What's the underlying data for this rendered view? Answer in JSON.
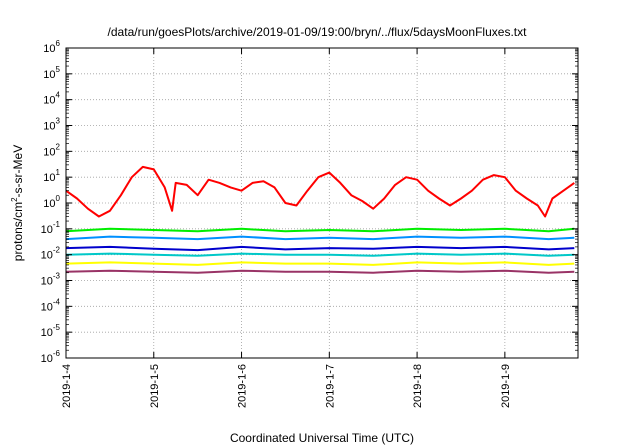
{
  "chart_data": {
    "type": "line",
    "title": "/data/run/goesPlots/archive/2019-01-09/19:00/bryn/../flux/5daysMoonFluxes.txt",
    "xlabel": "Coordinated Universal Time (UTC)",
    "ylabel": "protons/cm²-s-sr-MeV",
    "ylabel_parts": {
      "base": "protons/cm",
      "sup": "2",
      "rest": "-s-sr-MeV"
    },
    "yscale": "log",
    "xlim": [
      "2019-01-04T00:00",
      "2019-01-09T20:00"
    ],
    "ylim": [
      1e-06,
      1000000.0
    ],
    "grid": true,
    "x_tick_labels": [
      "2019-1-4",
      "2019-1-5",
      "2019-1-6",
      "2019-1-7",
      "2019-1-8",
      "2019-1-9"
    ],
    "y_ticks": [
      {
        "base": "10",
        "exp": "-6"
      },
      {
        "base": "10",
        "exp": "-5"
      },
      {
        "base": "10",
        "exp": "-4"
      },
      {
        "base": "10",
        "exp": "-3"
      },
      {
        "base": "10",
        "exp": "-2"
      },
      {
        "base": "10",
        "exp": "-1"
      },
      {
        "base": "10",
        "exp": "0"
      },
      {
        "base": "10",
        "exp": "1"
      },
      {
        "base": "10",
        "exp": "2"
      },
      {
        "base": "10",
        "exp": "3"
      },
      {
        "base": "10",
        "exp": "4"
      },
      {
        "base": "10",
        "exp": "5"
      },
      {
        "base": "10",
        "exp": "6"
      }
    ],
    "series": [
      {
        "color": "#ff0000",
        "x": [
          "2019-01-04T00:00",
          "2019-01-04T03:00",
          "2019-01-04T06:00",
          "2019-01-04T09:00",
          "2019-01-04T12:00",
          "2019-01-04T15:00",
          "2019-01-04T18:00",
          "2019-01-04T21:00",
          "2019-01-05T00:00",
          "2019-01-05T03:00",
          "2019-01-05T05:00",
          "2019-01-05T06:00",
          "2019-01-05T09:00",
          "2019-01-05T12:00",
          "2019-01-05T15:00",
          "2019-01-05T18:00",
          "2019-01-05T21:00",
          "2019-01-06T00:00",
          "2019-01-06T03:00",
          "2019-01-06T06:00",
          "2019-01-06T09:00",
          "2019-01-06T12:00",
          "2019-01-06T15:00",
          "2019-01-06T18:00",
          "2019-01-06T21:00",
          "2019-01-07T00:00",
          "2019-01-07T03:00",
          "2019-01-07T06:00",
          "2019-01-07T09:00",
          "2019-01-07T12:00",
          "2019-01-07T15:00",
          "2019-01-07T18:00",
          "2019-01-07T21:00",
          "2019-01-08T00:00",
          "2019-01-08T03:00",
          "2019-01-08T06:00",
          "2019-01-08T09:00",
          "2019-01-08T12:00",
          "2019-01-08T15:00",
          "2019-01-08T18:00",
          "2019-01-08T21:00",
          "2019-01-09T00:00",
          "2019-01-09T03:00",
          "2019-01-09T06:00",
          "2019-01-09T09:00",
          "2019-01-09T11:00",
          "2019-01-09T13:00",
          "2019-01-09T16:00",
          "2019-01-09T19:00"
        ],
        "y": [
          3,
          1.5,
          0.6,
          0.3,
          0.5,
          2,
          10,
          25,
          20,
          4,
          0.5,
          6,
          5,
          2,
          8,
          6,
          4,
          3,
          6,
          7,
          4,
          1,
          0.8,
          3,
          10,
          15,
          6,
          2,
          1.2,
          0.6,
          1.5,
          5,
          10,
          8,
          3,
          1.5,
          0.8,
          1.5,
          3,
          8,
          12,
          10,
          3,
          1.5,
          0.8,
          0.3,
          1.5,
          3,
          6
        ]
      },
      {
        "color": "#00ee00",
        "x": [
          "2019-01-04T00:00",
          "2019-01-04T12:00",
          "2019-01-05T00:00",
          "2019-01-05T12:00",
          "2019-01-06T00:00",
          "2019-01-06T12:00",
          "2019-01-07T00:00",
          "2019-01-07T12:00",
          "2019-01-08T00:00",
          "2019-01-08T12:00",
          "2019-01-09T00:00",
          "2019-01-09T12:00",
          "2019-01-09T19:00"
        ],
        "y": [
          0.08,
          0.1,
          0.09,
          0.08,
          0.1,
          0.08,
          0.09,
          0.08,
          0.1,
          0.09,
          0.1,
          0.08,
          0.1
        ]
      },
      {
        "color": "#0090ff",
        "x": [
          "2019-01-04T00:00",
          "2019-01-04T12:00",
          "2019-01-05T00:00",
          "2019-01-05T12:00",
          "2019-01-06T00:00",
          "2019-01-06T12:00",
          "2019-01-07T00:00",
          "2019-01-07T12:00",
          "2019-01-08T00:00",
          "2019-01-08T12:00",
          "2019-01-09T00:00",
          "2019-01-09T12:00",
          "2019-01-09T19:00"
        ],
        "y": [
          0.04,
          0.05,
          0.045,
          0.04,
          0.05,
          0.04,
          0.045,
          0.04,
          0.05,
          0.045,
          0.05,
          0.04,
          0.045
        ]
      },
      {
        "color": "#0000cc",
        "x": [
          "2019-01-04T00:00",
          "2019-01-04T12:00",
          "2019-01-05T00:00",
          "2019-01-05T12:00",
          "2019-01-06T00:00",
          "2019-01-06T12:00",
          "2019-01-07T00:00",
          "2019-01-07T12:00",
          "2019-01-08T00:00",
          "2019-01-08T12:00",
          "2019-01-09T00:00",
          "2019-01-09T12:00",
          "2019-01-09T19:00"
        ],
        "y": [
          0.018,
          0.02,
          0.017,
          0.015,
          0.02,
          0.016,
          0.018,
          0.017,
          0.02,
          0.018,
          0.02,
          0.016,
          0.018
        ]
      },
      {
        "color": "#00c8c8",
        "x": [
          "2019-01-04T00:00",
          "2019-01-04T12:00",
          "2019-01-05T00:00",
          "2019-01-05T12:00",
          "2019-01-06T00:00",
          "2019-01-06T12:00",
          "2019-01-07T00:00",
          "2019-01-07T12:00",
          "2019-01-08T00:00",
          "2019-01-08T12:00",
          "2019-01-09T00:00",
          "2019-01-09T12:00",
          "2019-01-09T19:00"
        ],
        "y": [
          0.01,
          0.011,
          0.01,
          0.009,
          0.011,
          0.01,
          0.01,
          0.009,
          0.011,
          0.01,
          0.011,
          0.009,
          0.01
        ]
      },
      {
        "color": "#ffff00",
        "x": [
          "2019-01-04T00:00",
          "2019-01-04T12:00",
          "2019-01-05T00:00",
          "2019-01-05T12:00",
          "2019-01-06T00:00",
          "2019-01-06T12:00",
          "2019-01-07T00:00",
          "2019-01-07T12:00",
          "2019-01-08T00:00",
          "2019-01-08T12:00",
          "2019-01-09T00:00",
          "2019-01-09T12:00",
          "2019-01-09T19:00"
        ],
        "y": [
          0.0045,
          0.005,
          0.0045,
          0.004,
          0.005,
          0.0045,
          0.0045,
          0.004,
          0.005,
          0.0045,
          0.005,
          0.004,
          0.0045
        ]
      },
      {
        "color": "#993366",
        "x": [
          "2019-01-04T00:00",
          "2019-01-04T12:00",
          "2019-01-05T00:00",
          "2019-01-05T12:00",
          "2019-01-06T00:00",
          "2019-01-06T12:00",
          "2019-01-07T00:00",
          "2019-01-07T12:00",
          "2019-01-08T00:00",
          "2019-01-08T12:00",
          "2019-01-09T00:00",
          "2019-01-09T12:00",
          "2019-01-09T19:00"
        ],
        "y": [
          0.0022,
          0.0024,
          0.0022,
          0.002,
          0.0024,
          0.0022,
          0.0022,
          0.002,
          0.0024,
          0.0022,
          0.0024,
          0.002,
          0.0022
        ]
      }
    ]
  }
}
